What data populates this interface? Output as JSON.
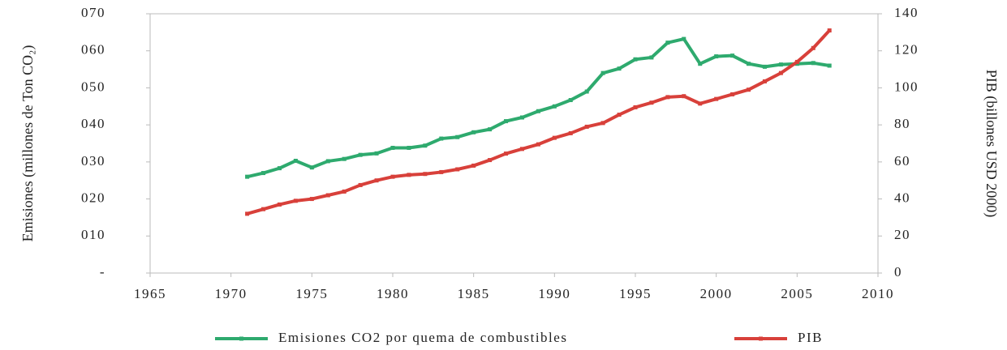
{
  "chart_data": {
    "type": "line",
    "x": [
      1971,
      1972,
      1973,
      1974,
      1975,
      1976,
      1977,
      1978,
      1979,
      1980,
      1981,
      1982,
      1983,
      1984,
      1985,
      1986,
      1987,
      1988,
      1989,
      1990,
      1991,
      1992,
      1993,
      1994,
      1995,
      1996,
      1997,
      1998,
      1999,
      2000,
      2001,
      2002,
      2003,
      2004,
      2005,
      2006,
      2007
    ],
    "series": [
      {
        "name": "Emisiones CO2 por quema de combustibles",
        "color": "#2eaa6e",
        "values": [
          26,
          27,
          28.3,
          30.3,
          28.5,
          30.2,
          30.8,
          31.9,
          32.3,
          33.8,
          33.8,
          34.4,
          36.3,
          36.7,
          38,
          38.8,
          41,
          42,
          43.7,
          45,
          46.7,
          49,
          54,
          55.2,
          57.7,
          58.2,
          62.2,
          63.2,
          56.5,
          58.5,
          58.7,
          56.5,
          55.7,
          56.3,
          56.5,
          56.7,
          56
        ]
      },
      {
        "name": "PIB",
        "color": "#d8403a",
        "axis": "y2",
        "values": [
          32,
          34.5,
          37,
          39,
          40,
          42,
          44,
          47.5,
          50,
          52,
          53,
          53.5,
          54.5,
          56,
          58,
          61,
          64.5,
          67,
          69.5,
          73,
          75.5,
          79,
          81,
          85.5,
          89.5,
          92,
          95,
          95.5,
          91.5,
          94,
          96.5,
          99,
          103.5,
          108,
          114,
          121.5,
          131
        ]
      }
    ],
    "ylabel": "Emisiones (millones de Ton CO₂)",
    "y2label": "PIB (billones USD 2000)",
    "xlim": [
      1965,
      2010
    ],
    "xticks": [
      1965,
      1970,
      1975,
      1980,
      1985,
      1990,
      1995,
      2000,
      2005,
      2010
    ],
    "ylim": [
      0,
      70
    ],
    "yticks": [
      {
        "value": 0,
        "label": "-"
      },
      {
        "value": 10,
        "label": "010"
      },
      {
        "value": 20,
        "label": "020"
      },
      {
        "value": 30,
        "label": "030"
      },
      {
        "value": 40,
        "label": "040"
      },
      {
        "value": 50,
        "label": "050"
      },
      {
        "value": 60,
        "label": "060"
      },
      {
        "value": 70,
        "label": "070"
      }
    ],
    "y2lim": [
      0,
      140
    ],
    "y2ticks": [
      0,
      20,
      40,
      60,
      80,
      100,
      120,
      140
    ],
    "legend": "bottom"
  }
}
